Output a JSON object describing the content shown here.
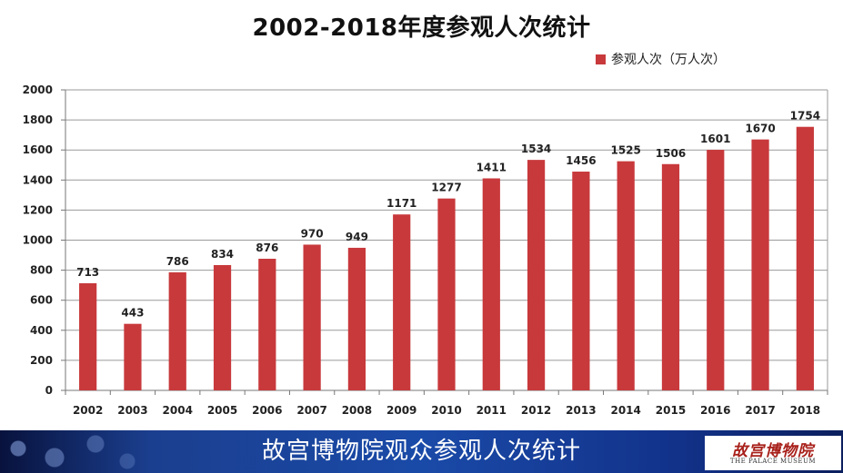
{
  "chart_data": {
    "type": "bar",
    "title": "2002-2018年度参观人次统计",
    "categories": [
      "2002",
      "2003",
      "2004",
      "2005",
      "2006",
      "2007",
      "2008",
      "2009",
      "2010",
      "2011",
      "2012",
      "2013",
      "2014",
      "2015",
      "2016",
      "2017",
      "2018"
    ],
    "series": [
      {
        "name": "参观人次（万人次）",
        "values": [
          713,
          443,
          786,
          834,
          876,
          970,
          949,
          1171,
          1277,
          1411,
          1534,
          1456,
          1525,
          1506,
          1601,
          1670,
          1754
        ],
        "color": "#c8393c"
      }
    ],
    "yticks": [
      0,
      200,
      400,
      600,
      800,
      1000,
      1200,
      1400,
      1600,
      1800,
      2000
    ],
    "ylim": [
      0,
      2000
    ],
    "grid": true,
    "legend_position": "top-right",
    "data_labels": true
  },
  "footer": {
    "title": "故宫博物院观众参观人次统计",
    "logo_cn": "故宫博物院",
    "logo_en": "THE PALACE MUSEUM"
  }
}
